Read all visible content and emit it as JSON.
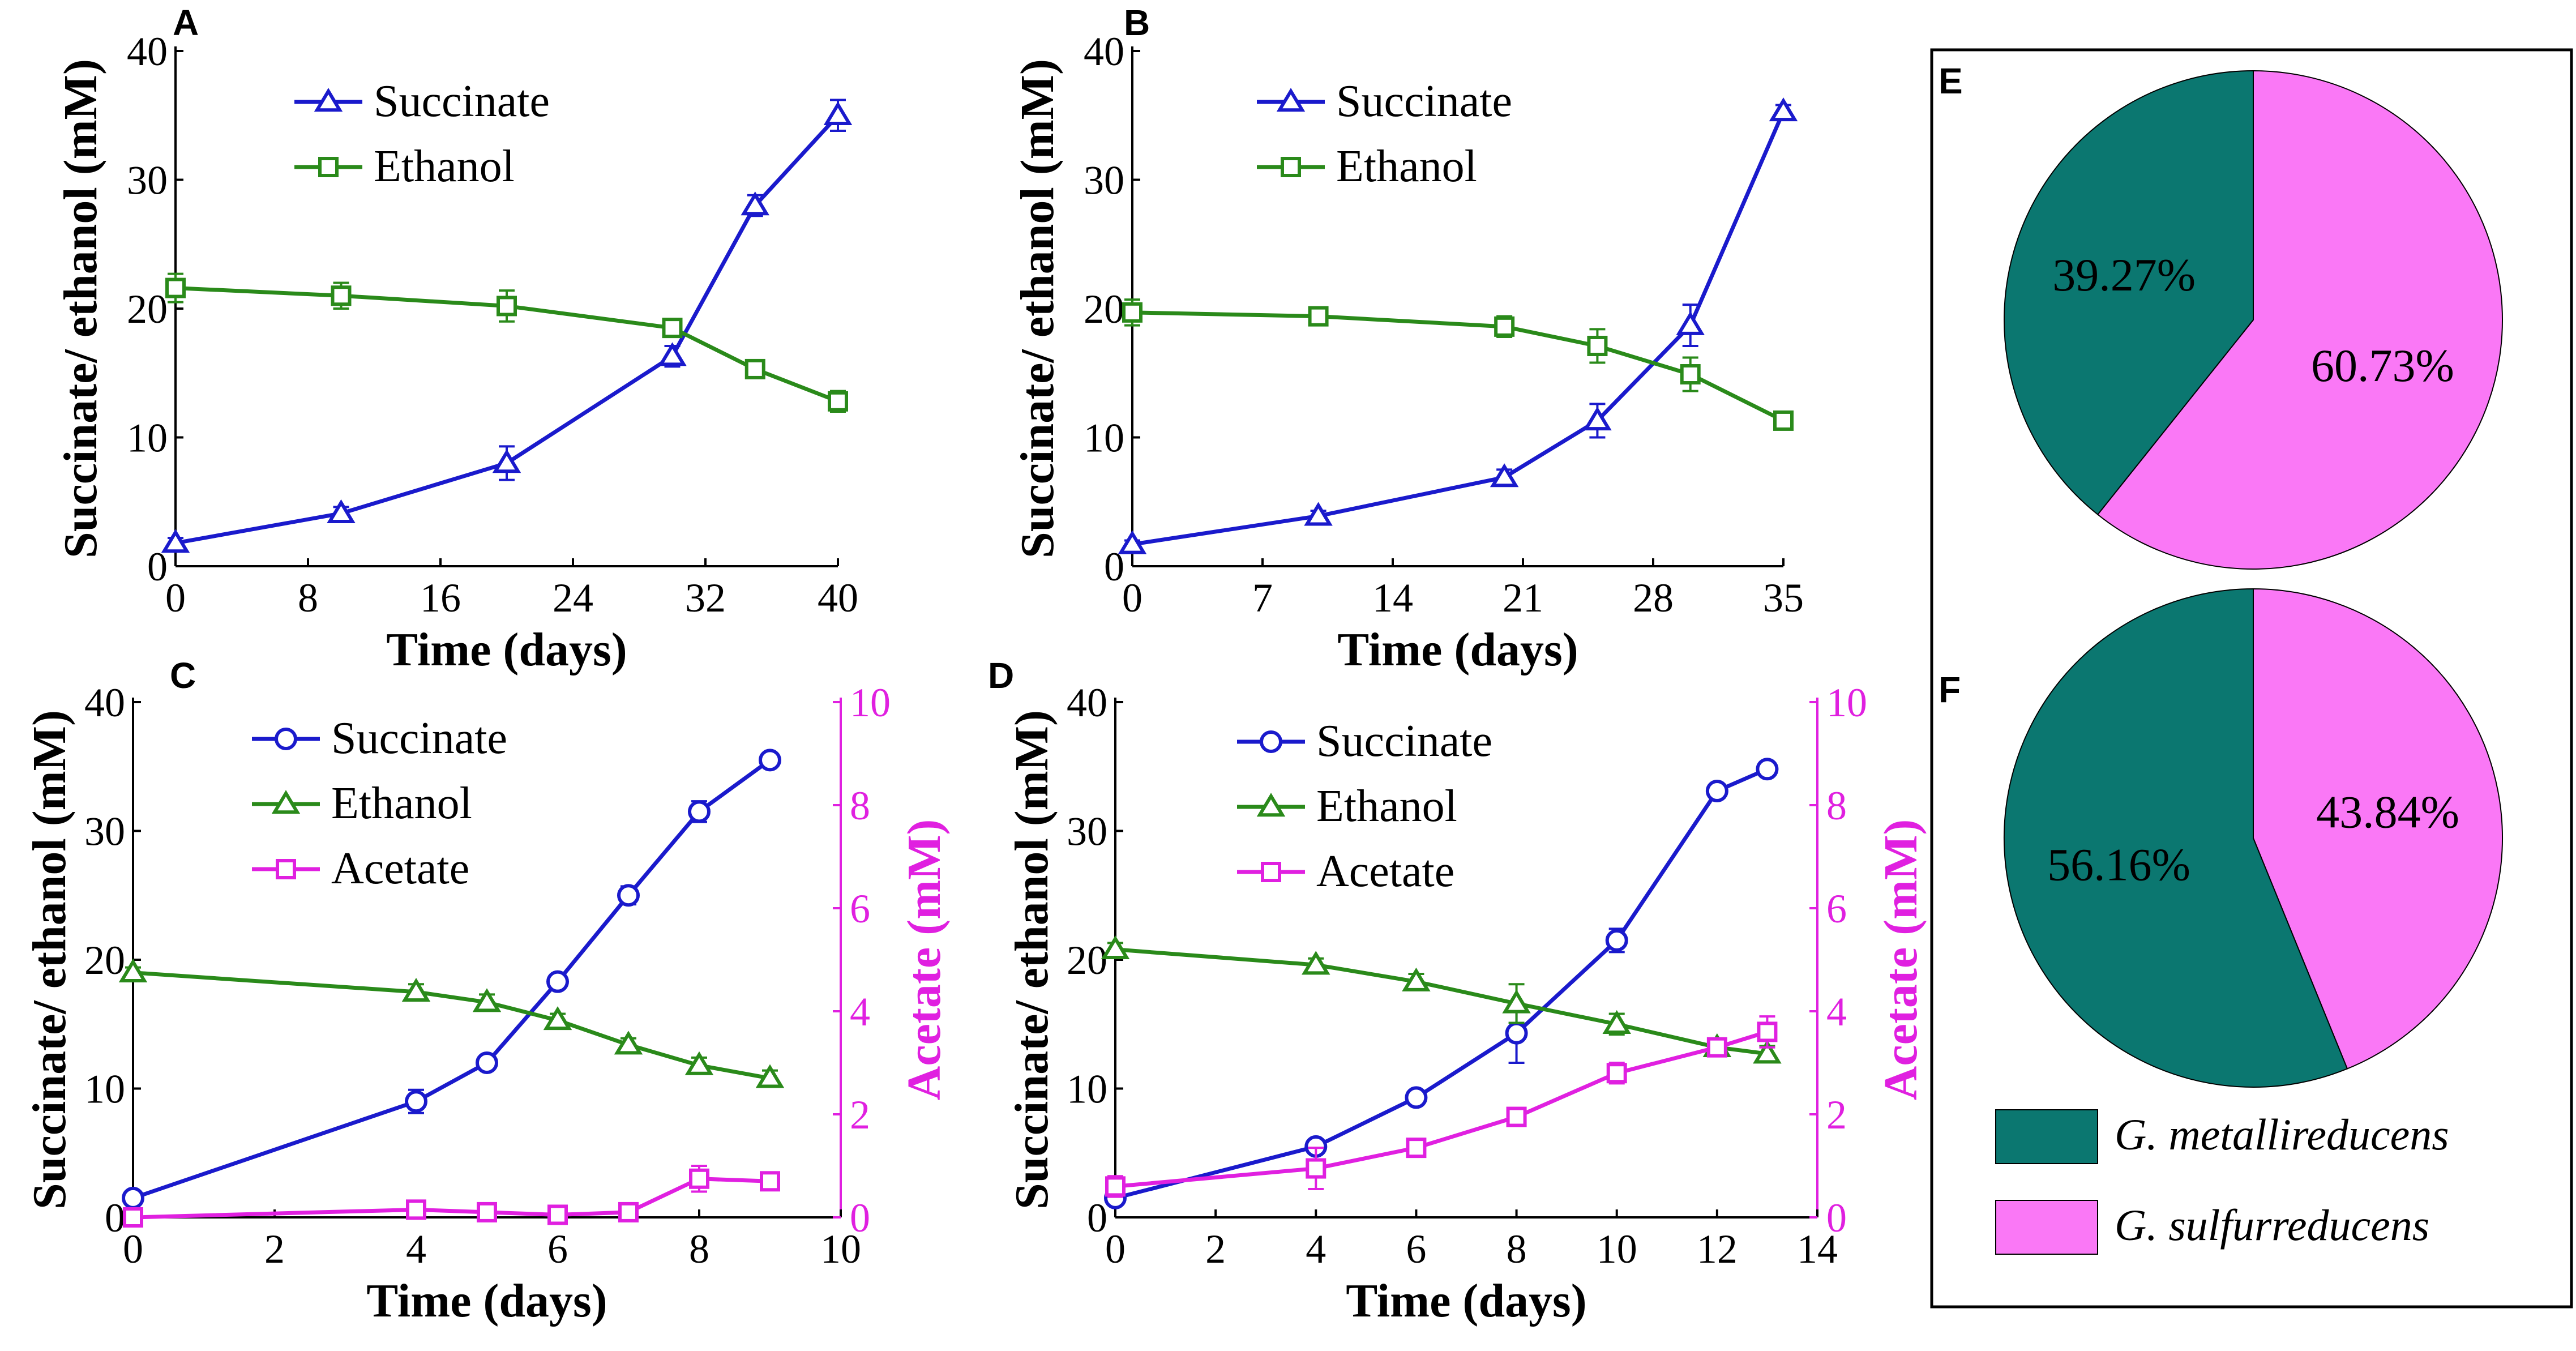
{
  "chart_data": [
    {
      "panel": "A",
      "type": "line",
      "xlabel": "Time (days)",
      "ylabel": "Succinate/ ethanol (mM)",
      "xlim": [
        0,
        40
      ],
      "xticks": [
        0,
        8,
        16,
        24,
        32,
        40
      ],
      "ylim": [
        0,
        40
      ],
      "yticks": [
        0,
        10,
        20,
        30,
        40
      ],
      "legend_position": "top-center",
      "series": [
        {
          "name": "Succinate",
          "color": "#1a1acc",
          "marker": "triangle",
          "x": [
            0,
            10,
            20,
            30,
            35,
            40
          ],
          "y": [
            1.8,
            4.1,
            8.0,
            16.3,
            28.0,
            35.0
          ],
          "err": [
            0.4,
            0.5,
            1.3,
            0.8,
            0.8,
            1.2
          ]
        },
        {
          "name": "Ethanol",
          "color": "#2a8a1a",
          "marker": "square",
          "x": [
            0,
            10,
            20,
            30,
            35,
            40
          ],
          "y": [
            21.6,
            21.0,
            20.2,
            18.5,
            15.3,
            12.8
          ],
          "err": [
            1.1,
            1.0,
            1.2,
            0.5,
            0.3,
            0.8
          ]
        }
      ]
    },
    {
      "panel": "B",
      "type": "line",
      "xlabel": "Time (days)",
      "ylabel": "Succinate/ ethanol (mM)",
      "xlim": [
        0,
        35
      ],
      "xticks": [
        0,
        7,
        14,
        21,
        28,
        35
      ],
      "ylim": [
        0,
        40
      ],
      "yticks": [
        0,
        10,
        20,
        30,
        40
      ],
      "legend_position": "top-center",
      "series": [
        {
          "name": "Succinate",
          "color": "#1a1acc",
          "marker": "triangle",
          "x": [
            0,
            10,
            20,
            25,
            30,
            35
          ],
          "y": [
            1.7,
            3.9,
            6.9,
            11.3,
            18.7,
            35.3
          ],
          "err": [
            0.3,
            0.4,
            0.6,
            1.3,
            1.6,
            0.5
          ]
        },
        {
          "name": "Ethanol",
          "color": "#2a8a1a",
          "marker": "square",
          "x": [
            0,
            10,
            20,
            25,
            30,
            35
          ],
          "y": [
            19.7,
            19.4,
            18.6,
            17.1,
            14.9,
            11.3
          ],
          "err": [
            1.0,
            0.5,
            0.8,
            1.3,
            1.3,
            0.4
          ]
        }
      ]
    },
    {
      "panel": "C",
      "type": "line",
      "xlabel": "Time (days)",
      "ylabel": "Succinate/ ethanol (mM)",
      "y2label": "Acetate (mM)",
      "xlim": [
        0,
        10
      ],
      "xticks": [
        0,
        2,
        4,
        6,
        8,
        10
      ],
      "ylim": [
        0,
        40
      ],
      "yticks": [
        0,
        10,
        20,
        30,
        40
      ],
      "y2lim": [
        0,
        10
      ],
      "y2ticks": [
        0,
        2,
        4,
        6,
        8,
        10
      ],
      "legend_position": "top-center",
      "series": [
        {
          "name": "Succinate",
          "color": "#1a1acc",
          "marker": "circle",
          "axis": "left",
          "x": [
            0,
            4,
            5,
            6,
            7,
            8,
            9
          ],
          "y": [
            1.5,
            9.0,
            12.0,
            18.3,
            25.0,
            31.5,
            35.5
          ],
          "err": [
            0.3,
            0.9,
            0.4,
            0.4,
            0.7,
            0.8,
            0.3
          ]
        },
        {
          "name": "Ethanol",
          "color": "#2a8a1a",
          "marker": "triangle",
          "axis": "left",
          "x": [
            0,
            4,
            5,
            6,
            7,
            8,
            9
          ],
          "y": [
            19.0,
            17.5,
            16.7,
            15.3,
            13.4,
            11.8,
            10.8
          ],
          "err": [
            0.4,
            0.6,
            0.6,
            0.5,
            0.5,
            0.6,
            0.6
          ]
        },
        {
          "name": "Acetate",
          "color": "#e020e0",
          "marker": "square",
          "axis": "right",
          "x": [
            0,
            4,
            5,
            6,
            7,
            8,
            9
          ],
          "y": [
            0.0,
            0.15,
            0.1,
            0.05,
            0.1,
            0.75,
            0.7
          ],
          "err": [
            0.05,
            0.1,
            0.1,
            0.05,
            0.05,
            0.25,
            0.1
          ]
        }
      ]
    },
    {
      "panel": "D",
      "type": "line",
      "xlabel": "Time (days)",
      "ylabel": "Succinate/ ethanol (mM)",
      "y2label": "Acetate (mM)",
      "xlim": [
        0,
        14
      ],
      "xticks": [
        0,
        2,
        4,
        6,
        8,
        10,
        12,
        14
      ],
      "ylim": [
        0,
        40
      ],
      "yticks": [
        0,
        10,
        20,
        30,
        40
      ],
      "y2lim": [
        0,
        10
      ],
      "y2ticks": [
        0,
        2,
        4,
        6,
        8,
        10
      ],
      "legend_position": "top-center",
      "series": [
        {
          "name": "Succinate",
          "color": "#1a1acc",
          "marker": "circle",
          "axis": "left",
          "x": [
            0,
            4,
            6,
            8,
            10,
            12,
            13
          ],
          "y": [
            1.5,
            5.5,
            9.3,
            14.3,
            21.5,
            33.1,
            34.8
          ],
          "err": [
            0.4,
            0.4,
            0.4,
            2.3,
            0.9,
            0.4,
            0.5
          ]
        },
        {
          "name": "Ethanol",
          "color": "#2a8a1a",
          "marker": "triangle",
          "axis": "left",
          "x": [
            0,
            4,
            6,
            8,
            10,
            12,
            13
          ],
          "y": [
            20.8,
            19.6,
            18.3,
            16.6,
            15.0,
            13.2,
            12.7
          ],
          "err": [
            0.5,
            0.5,
            0.6,
            1.5,
            0.8,
            0.5,
            0.6
          ]
        },
        {
          "name": "Acetate",
          "color": "#e020e0",
          "marker": "square",
          "axis": "right",
          "x": [
            0,
            4,
            6,
            8,
            10,
            12,
            13
          ],
          "y": [
            0.6,
            0.95,
            1.35,
            1.95,
            2.8,
            3.3,
            3.6
          ],
          "err": [
            0.2,
            0.4,
            0.1,
            0.1,
            0.2,
            0.1,
            0.3
          ]
        }
      ]
    },
    {
      "panel": "E",
      "type": "pie",
      "slices": [
        {
          "label": "G. metallireducens",
          "value": 39.27,
          "text": "39.27%",
          "color": "#0b7770"
        },
        {
          "label": "G. sulfurreducens",
          "value": 60.73,
          "text": "60.73%",
          "color": "#fa78f6"
        }
      ]
    },
    {
      "panel": "F",
      "type": "pie",
      "slices": [
        {
          "label": "G. metallireducens",
          "value": 56.16,
          "text": "56.16%",
          "color": "#0b7770"
        },
        {
          "label": "G. sulfurreducens",
          "value": 43.84,
          "text": "43.84%",
          "color": "#fa78f6"
        }
      ]
    }
  ],
  "pie_legend": [
    {
      "label": "G. metallireducens",
      "color": "#0b7770"
    },
    {
      "label": "G. sulfurreducens",
      "color": "#fa78f6"
    }
  ]
}
